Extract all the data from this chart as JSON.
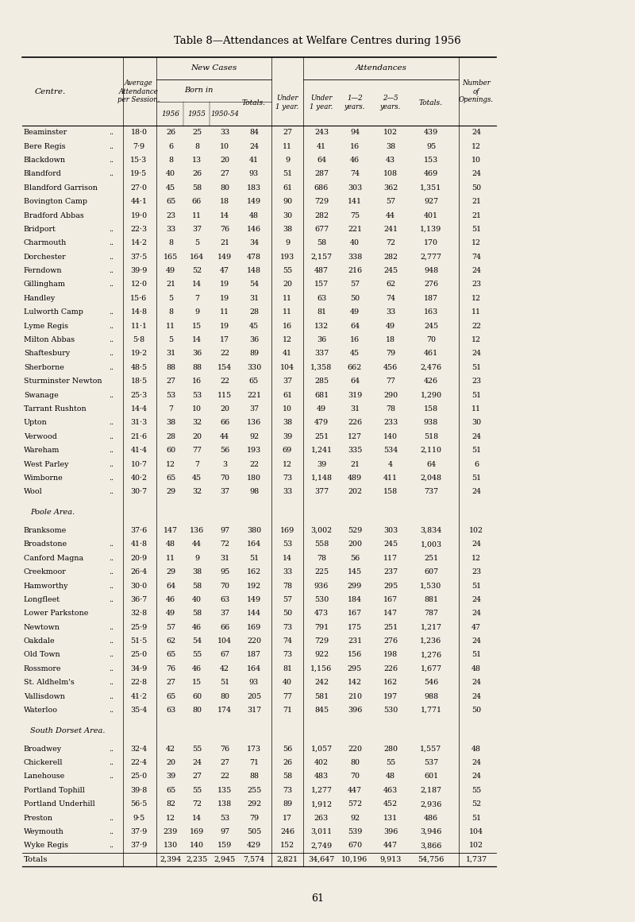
{
  "title": "Table 8—Attendances at Welfare Centres during 1956",
  "bg_color": "#f2ede3",
  "rows": [
    [
      "Beaminster",
      "18·0",
      "26",
      "25",
      "33",
      "84",
      "27",
      "243",
      "94",
      "102",
      "439",
      "24"
    ],
    [
      "Bere Regis",
      "7·9",
      "6",
      "8",
      "10",
      "24",
      "11",
      "41",
      "16",
      "38",
      "95",
      "12"
    ],
    [
      "Blackdown",
      "15·3",
      "8",
      "13",
      "20",
      "41",
      "9",
      "64",
      "46",
      "43",
      "153",
      "10"
    ],
    [
      "Blandford",
      "19·5",
      "40",
      "26",
      "27",
      "93",
      "51",
      "287",
      "74",
      "108",
      "469",
      "24"
    ],
    [
      "Blandford Garrison",
      "27·0",
      "45",
      "58",
      "80",
      "183",
      "61",
      "686",
      "303",
      "362",
      "1,351",
      "50"
    ],
    [
      "Bovington Camp",
      "44·1",
      "65",
      "66",
      "18",
      "149",
      "90",
      "729",
      "141",
      "57",
      "927",
      "21"
    ],
    [
      "Bradford Abbas",
      "19·0",
      "23",
      "11",
      "14",
      "48",
      "30",
      "282",
      "75",
      "44",
      "401",
      "21"
    ],
    [
      "Bridport",
      "22·3",
      "33",
      "37",
      "76",
      "146",
      "38",
      "677",
      "221",
      "241",
      "1,139",
      "51"
    ],
    [
      "Charmouth",
      "14·2",
      "8",
      "5",
      "21",
      "34",
      "9",
      "58",
      "40",
      "72",
      "170",
      "12"
    ],
    [
      "Dorchester",
      "37·5",
      "165",
      "164",
      "149",
      "478",
      "193",
      "2,157",
      "338",
      "282",
      "2,777",
      "74"
    ],
    [
      "Ferndown",
      "39·9",
      "49",
      "52",
      "47",
      "148",
      "55",
      "487",
      "216",
      "245",
      "948",
      "24"
    ],
    [
      "Gillingham",
      "12·0",
      "21",
      "14",
      "19",
      "54",
      "20",
      "157",
      "57",
      "62",
      "276",
      "23"
    ],
    [
      "Handley",
      "15·6",
      "5",
      "7",
      "19",
      "31",
      "11",
      "63",
      "50",
      "74",
      "187",
      "12"
    ],
    [
      "Lulworth Camp",
      "14·8",
      "8",
      "9",
      "11",
      "28",
      "11",
      "81",
      "49",
      "33",
      "163",
      "11"
    ],
    [
      "Lyme Regis",
      "11·1",
      "11",
      "15",
      "19",
      "45",
      "16",
      "132",
      "64",
      "49",
      "245",
      "22"
    ],
    [
      "Milton Abbas",
      "5·8",
      "5",
      "14",
      "17",
      "36",
      "12",
      "36",
      "16",
      "18",
      "70",
      "12"
    ],
    [
      "Shaftesbury",
      "19·2",
      "31",
      "36",
      "22",
      "89",
      "41",
      "337",
      "45",
      "79",
      "461",
      "24"
    ],
    [
      "Sherborne",
      "48·5",
      "88",
      "88",
      "154",
      "330",
      "104",
      "1,358",
      "662",
      "456",
      "2,476",
      "51"
    ],
    [
      "Sturminster Newton",
      "18·5",
      "27",
      "16",
      "22",
      "65",
      "37",
      "285",
      "64",
      "77",
      "426",
      "23"
    ],
    [
      "Swanage",
      "25·3",
      "53",
      "53",
      "115",
      "221",
      "61",
      "681",
      "319",
      "290",
      "1,290",
      "51"
    ],
    [
      "Tarrant Rushton",
      "14·4",
      "7",
      "10",
      "20",
      "37",
      "10",
      "49",
      "31",
      "78",
      "158",
      "11"
    ],
    [
      "Upton",
      "31·3",
      "38",
      "32",
      "66",
      "136",
      "38",
      "479",
      "226",
      "233",
      "938",
      "30"
    ],
    [
      "Verwood",
      "21·6",
      "28",
      "20",
      "44",
      "92",
      "39",
      "251",
      "127",
      "140",
      "518",
      "24"
    ],
    [
      "Wareham",
      "41·4",
      "60",
      "77",
      "56",
      "193",
      "69",
      "1,241",
      "335",
      "534",
      "2,110",
      "51"
    ],
    [
      "West Parley",
      "10·7",
      "12",
      "7",
      "3",
      "22",
      "12",
      "39",
      "21",
      "4",
      "64",
      "6"
    ],
    [
      "Wimborne",
      "40·2",
      "65",
      "45",
      "70",
      "180",
      "73",
      "1,148",
      "489",
      "411",
      "2,048",
      "51"
    ],
    [
      "Wool",
      "30·7",
      "29",
      "32",
      "37",
      "98",
      "33",
      "377",
      "202",
      "158",
      "737",
      "24"
    ],
    [
      "__SECTION__Poole Area.",
      "",
      "",
      "",
      "",
      "",
      "",
      "",
      "",
      "",
      "",
      ""
    ],
    [
      "Branksome",
      "37·6",
      "147",
      "136",
      "97",
      "380",
      "169",
      "3,002",
      "529",
      "303",
      "3,834",
      "102"
    ],
    [
      "Broadstone",
      "41·8",
      "48",
      "44",
      "72",
      "164",
      "53",
      "558",
      "200",
      "245",
      "1,003",
      "24"
    ],
    [
      "Canford Magna",
      "20·9",
      "11",
      "9",
      "31",
      "51",
      "14",
      "78",
      "56",
      "117",
      "251",
      "12"
    ],
    [
      "Creekmoor",
      "26·4",
      "29",
      "38",
      "95",
      "162",
      "33",
      "225",
      "145",
      "237",
      "607",
      "23"
    ],
    [
      "Hamworthy",
      "30·0",
      "64",
      "58",
      "70",
      "192",
      "78",
      "936",
      "299",
      "295",
      "1,530",
      "51"
    ],
    [
      "Longfleet",
      "36·7",
      "46",
      "40",
      "63",
      "149",
      "57",
      "530",
      "184",
      "167",
      "881",
      "24"
    ],
    [
      "Lower Parkstone",
      "32·8",
      "49",
      "58",
      "37",
      "144",
      "50",
      "473",
      "167",
      "147",
      "787",
      "24"
    ],
    [
      "Newtown",
      "25·9",
      "57",
      "46",
      "66",
      "169",
      "73",
      "791",
      "175",
      "251",
      "1,217",
      "47"
    ],
    [
      "Oakdale",
      "51·5",
      "62",
      "54",
      "104",
      "220",
      "74",
      "729",
      "231",
      "276",
      "1,236",
      "24"
    ],
    [
      "Old Town",
      "25·0",
      "65",
      "55",
      "67",
      "187",
      "73",
      "922",
      "156",
      "198",
      "1,276",
      "51"
    ],
    [
      "Rossmore",
      "34·9",
      "76",
      "46",
      "42",
      "164",
      "81",
      "1,156",
      "295",
      "226",
      "1,677",
      "48"
    ],
    [
      "St. Aldhelm's",
      "22·8",
      "27",
      "15",
      "51",
      "93",
      "40",
      "242",
      "142",
      "162",
      "546",
      "24"
    ],
    [
      "Vallisdown",
      "41·2",
      "65",
      "60",
      "80",
      "205",
      "77",
      "581",
      "210",
      "197",
      "988",
      "24"
    ],
    [
      "Waterloo",
      "35·4",
      "63",
      "80",
      "174",
      "317",
      "71",
      "845",
      "396",
      "530",
      "1,771",
      "50"
    ],
    [
      "__SECTION__South Dorset Area.",
      "",
      "",
      "",
      "",
      "",
      "",
      "",
      "",
      "",
      "",
      ""
    ],
    [
      "Broadwey",
      "32·4",
      "42",
      "55",
      "76",
      "173",
      "56",
      "1,057",
      "220",
      "280",
      "1,557",
      "48"
    ],
    [
      "Chickerell",
      "22·4",
      "20",
      "24",
      "27",
      "71",
      "26",
      "402",
      "80",
      "55",
      "537",
      "24"
    ],
    [
      "Lanehouse",
      "25·0",
      "39",
      "27",
      "22",
      "88",
      "58",
      "483",
      "70",
      "48",
      "601",
      "24"
    ],
    [
      "Portland Tophill",
      "39·8",
      "65",
      "55",
      "135",
      "255",
      "73",
      "1,277",
      "447",
      "463",
      "2,187",
      "55"
    ],
    [
      "Portland Underhill",
      "56·5",
      "82",
      "72",
      "138",
      "292",
      "89",
      "1,912",
      "572",
      "452",
      "2,936",
      "52"
    ],
    [
      "Preston",
      "9·5",
      "12",
      "14",
      "53",
      "79",
      "17",
      "263",
      "92",
      "131",
      "486",
      "51"
    ],
    [
      "Weymouth",
      "37·9",
      "239",
      "169",
      "97",
      "505",
      "246",
      "3,011",
      "539",
      "396",
      "3,946",
      "104"
    ],
    [
      "Wyke Regis",
      "37·9",
      "130",
      "140",
      "159",
      "429",
      "152",
      "2,749",
      "670",
      "447",
      "3,866",
      "102"
    ]
  ],
  "totals_row": [
    "Totals",
    "",
    "2,394",
    "2,235",
    "2,945",
    "7,574",
    "2,821",
    "34,647",
    "10,196",
    "9,913",
    "54,756",
    "1,737"
  ],
  "footer": "61",
  "col_dots": {
    "Beaminster": true,
    "Bere Regis": true,
    "Blackdown": true,
    "Blandford": true,
    "Bridport": true,
    "Charmouth": true,
    "Dorchester": true,
    "Ferndown": true,
    "Gillingham": true,
    "Lulworth Camp": true,
    "Lyme Regis": true,
    "Milton Abbas": true,
    "Shaftesbury": true,
    "Sherborne": true,
    "Swanage": true,
    "Upton": true,
    "Verwood": true,
    "Wareham": true,
    "West Parley": true,
    "Wimborne": true,
    "Wool": true,
    "Broadstone": true,
    "Canford Magna": true,
    "Creekmoor": true,
    "Hamworthy": true,
    "Longfleet": true,
    "Newtown": true,
    "Oakdale": true,
    "Old Town": true,
    "Rossmore": true,
    "St. Aldhelm's": true,
    "Vallisdown": true,
    "Waterloo": true,
    "Broadwey": true,
    "Chickerell": true,
    "Lanehouse": true,
    "Preston": true,
    "Weymouth": true,
    "Wyke Regis": true
  }
}
